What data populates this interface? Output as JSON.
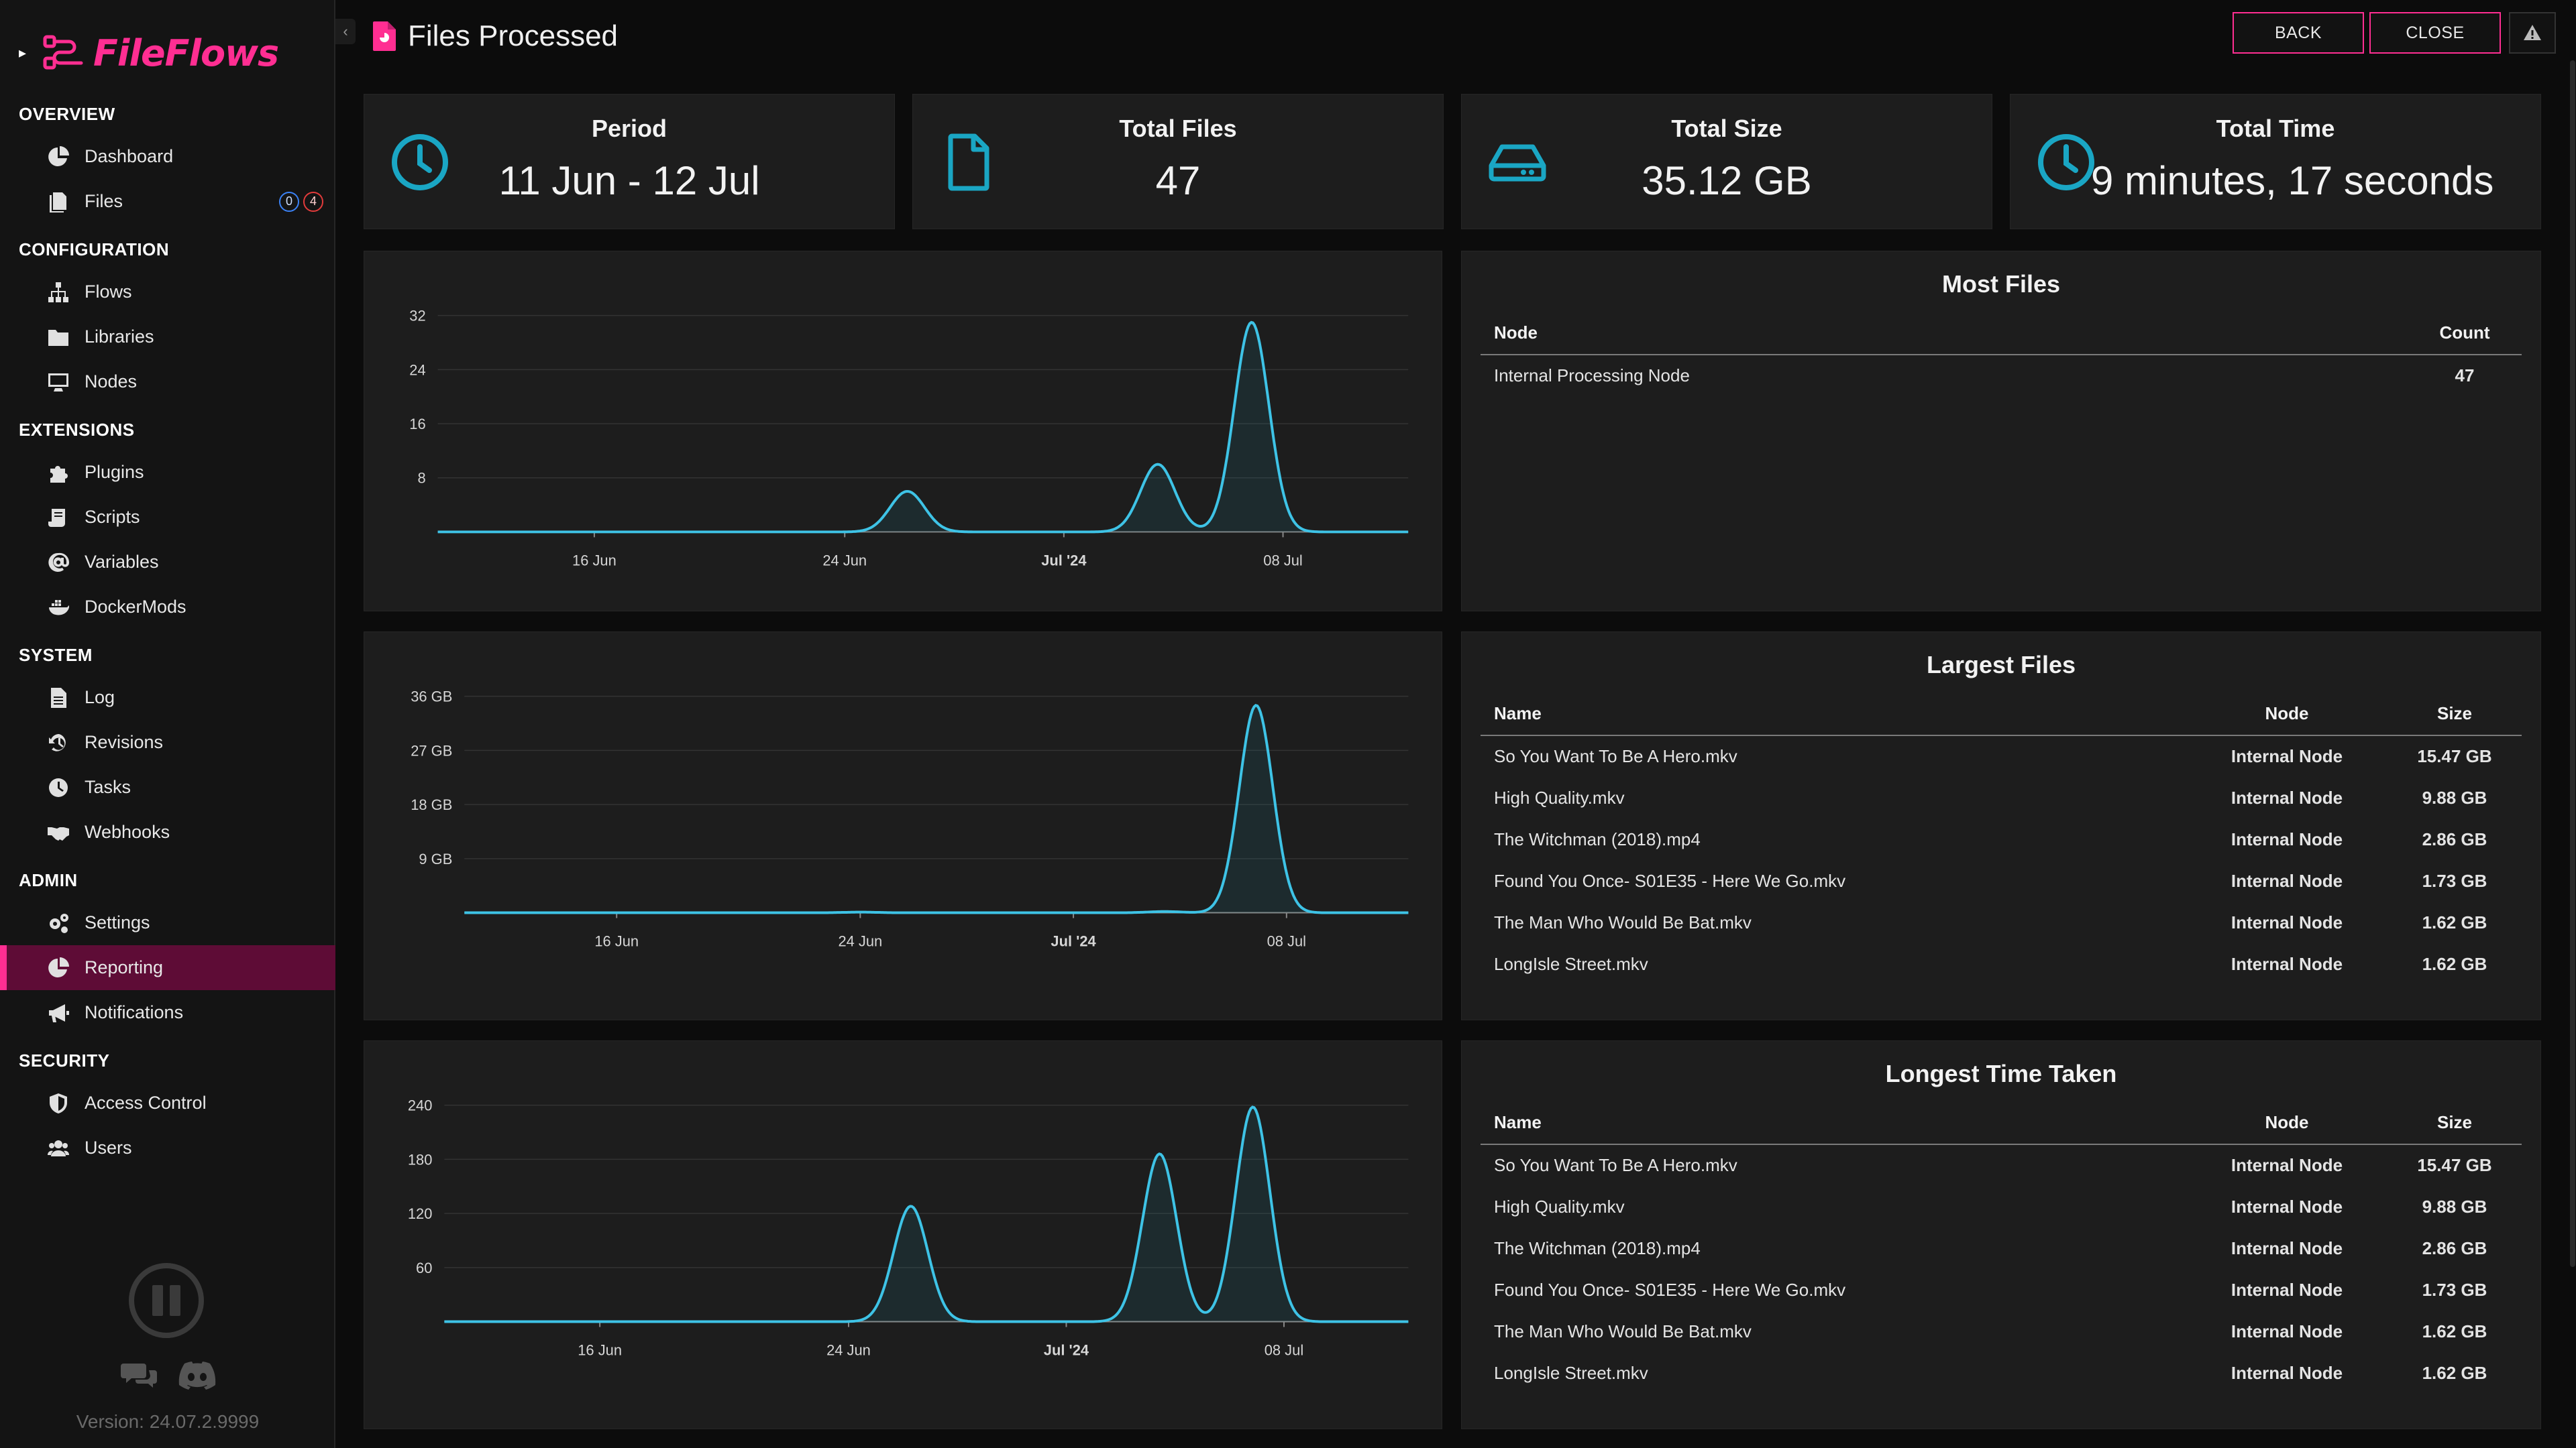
{
  "app": {
    "brand": "FileFlows",
    "version": "Version: 24.07.2.9999",
    "brand_color": "#ff2e92",
    "accent_color": "#1aa6c4"
  },
  "sidebar": {
    "sections": [
      {
        "title": "OVERVIEW",
        "items": [
          {
            "label": "Dashboard",
            "icon": "pie-chart-icon"
          },
          {
            "label": "Files",
            "icon": "files-icon",
            "badges": [
              "0",
              "4"
            ]
          }
        ]
      },
      {
        "title": "CONFIGURATION",
        "items": [
          {
            "label": "Flows",
            "icon": "sitemap-icon"
          },
          {
            "label": "Libraries",
            "icon": "folder-icon"
          },
          {
            "label": "Nodes",
            "icon": "desktop-icon"
          }
        ]
      },
      {
        "title": "EXTENSIONS",
        "items": [
          {
            "label": "Plugins",
            "icon": "puzzle-icon"
          },
          {
            "label": "Scripts",
            "icon": "scroll-icon"
          },
          {
            "label": "Variables",
            "icon": "at-icon"
          },
          {
            "label": "DockerMods",
            "icon": "docker-icon"
          }
        ]
      },
      {
        "title": "SYSTEM",
        "items": [
          {
            "label": "Log",
            "icon": "file-alt-icon"
          },
          {
            "label": "Revisions",
            "icon": "history-icon"
          },
          {
            "label": "Tasks",
            "icon": "clock-icon"
          },
          {
            "label": "Webhooks",
            "icon": "handshake-icon"
          }
        ]
      },
      {
        "title": "ADMIN",
        "items": [
          {
            "label": "Settings",
            "icon": "cogs-icon"
          },
          {
            "label": "Reporting",
            "icon": "chart-pie-icon",
            "active": true
          },
          {
            "label": "Notifications",
            "icon": "bullhorn-icon"
          }
        ]
      },
      {
        "title": "SECURITY",
        "items": [
          {
            "label": "Access Control",
            "icon": "shield-icon"
          },
          {
            "label": "Users",
            "icon": "users-icon"
          }
        ]
      }
    ]
  },
  "header": {
    "title": "Files Processed",
    "back_label": "BACK",
    "close_label": "CLOSE"
  },
  "summary": {
    "period": {
      "label": "Period",
      "value": "11 Jun - 12 Jul"
    },
    "total_files": {
      "label": "Total Files",
      "value": "47"
    },
    "total_size": {
      "label": "Total Size",
      "value": "35.12 GB"
    },
    "total_time": {
      "label": "Total Time",
      "value": "9 minutes, 17 seconds"
    }
  },
  "chart_data": [
    {
      "type": "area",
      "x_tick_labels": [
        "16 Jun",
        "24 Jun",
        "Jul '24",
        "08 Jul"
      ],
      "y_tick_labels": [
        "8",
        "16",
        "24",
        "32"
      ],
      "ylim": [
        0,
        32
      ],
      "points": [
        {
          "x": "11 Jun",
          "y": 0
        },
        {
          "x": "26 Jun",
          "y": 6
        },
        {
          "x": "04 Jul",
          "y": 10
        },
        {
          "x": "07 Jul",
          "y": 31
        },
        {
          "x": "12 Jul",
          "y": 0
        }
      ]
    },
    {
      "type": "area",
      "x_tick_labels": [
        "16 Jun",
        "24 Jun",
        "Jul '24",
        "08 Jul"
      ],
      "y_tick_labels": [
        "9 GB",
        "18 GB",
        "27 GB",
        "36 GB"
      ],
      "ylim": [
        0,
        36
      ],
      "points": [
        {
          "x": "11 Jun",
          "y": 0
        },
        {
          "x": "24 Jun",
          "y": 0.1
        },
        {
          "x": "04 Jul",
          "y": 0.2
        },
        {
          "x": "07 Jul",
          "y": 34.5
        },
        {
          "x": "12 Jul",
          "y": 0
        }
      ]
    },
    {
      "type": "area",
      "x_tick_labels": [
        "16 Jun",
        "24 Jun",
        "Jul '24",
        "08 Jul"
      ],
      "y_tick_labels": [
        "60",
        "120",
        "180",
        "240"
      ],
      "ylim": [
        0,
        240
      ],
      "points": [
        {
          "x": "11 Jun",
          "y": 0
        },
        {
          "x": "26 Jun",
          "y": 128
        },
        {
          "x": "04 Jul",
          "y": 186
        },
        {
          "x": "07 Jul",
          "y": 238
        },
        {
          "x": "12 Jul",
          "y": 0
        }
      ]
    }
  ],
  "most_files": {
    "title": "Most Files",
    "columns": [
      "Node",
      "Count"
    ],
    "rows": [
      {
        "node": "Internal Processing Node",
        "count": "47"
      }
    ]
  },
  "largest_files": {
    "title": "Largest Files",
    "columns": [
      "Name",
      "Node",
      "Size"
    ],
    "rows": [
      {
        "name": "So You Want To Be A Hero.mkv",
        "node": "Internal Node",
        "size": "15.47 GB"
      },
      {
        "name": "High Quality.mkv",
        "node": "Internal Node",
        "size": "9.88 GB"
      },
      {
        "name": "The Witchman (2018).mp4",
        "node": "Internal Node",
        "size": "2.86 GB"
      },
      {
        "name": "Found You Once- S01E35 - Here We Go.mkv",
        "node": "Internal Node",
        "size": "1.73 GB"
      },
      {
        "name": "The Man Who Would Be Bat.mkv",
        "node": "Internal Node",
        "size": "1.62 GB"
      },
      {
        "name": "LongIsle Street.mkv",
        "node": "Internal Node",
        "size": "1.62 GB"
      }
    ]
  },
  "longest_time": {
    "title": "Longest Time Taken",
    "columns": [
      "Name",
      "Node",
      "Size"
    ],
    "rows": [
      {
        "name": "So You Want To Be A Hero.mkv",
        "node": "Internal Node",
        "size": "15.47 GB"
      },
      {
        "name": "High Quality.mkv",
        "node": "Internal Node",
        "size": "9.88 GB"
      },
      {
        "name": "The Witchman (2018).mp4",
        "node": "Internal Node",
        "size": "2.86 GB"
      },
      {
        "name": "Found You Once- S01E35 - Here We Go.mkv",
        "node": "Internal Node",
        "size": "1.73 GB"
      },
      {
        "name": "The Man Who Would Be Bat.mkv",
        "node": "Internal Node",
        "size": "1.62 GB"
      },
      {
        "name": "LongIsle Street.mkv",
        "node": "Internal Node",
        "size": "1.62 GB"
      }
    ]
  }
}
